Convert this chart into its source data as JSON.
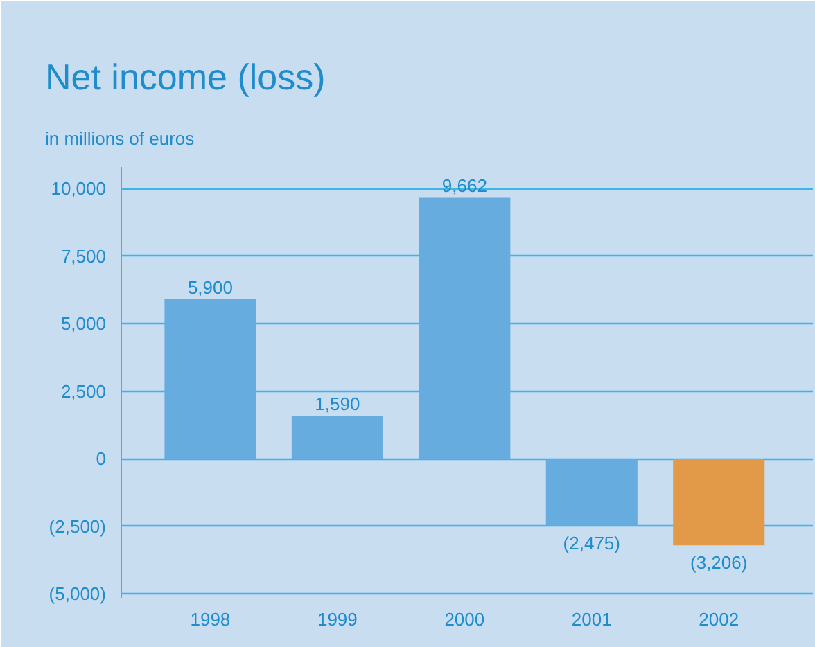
{
  "chart_data": {
    "type": "bar",
    "title": "Net income (loss)",
    "subtitle": "in millions of euros",
    "categories": [
      "1998",
      "1999",
      "2000",
      "2001",
      "2002"
    ],
    "values": [
      5900,
      1590,
      9662,
      -2475,
      -3206
    ],
    "colors": [
      "#66acdf",
      "#66acdf",
      "#66acdf",
      "#66acdf",
      "#e39a48"
    ],
    "value_labels": [
      "5,900",
      "1,590",
      "9,662",
      "(2,475)",
      "(3,206)"
    ],
    "ylim": [
      -5150,
      10800
    ],
    "yticks": [
      {
        "value": -5000,
        "label": "(5,000)"
      },
      {
        "value": -2500,
        "label": "(2,500)"
      },
      0,
      {
        "value": 2500,
        "label": "2,500"
      },
      {
        "value": 5000,
        "label": "5,000"
      },
      {
        "value": 7500,
        "label": "7,500"
      },
      {
        "value": 10000,
        "label": "10,000"
      }
    ],
    "grid": "y"
  }
}
